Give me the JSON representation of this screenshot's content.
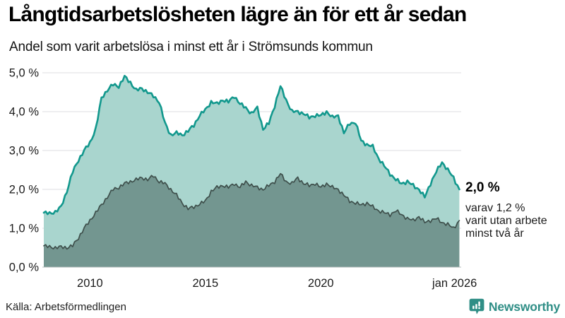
{
  "header": {
    "title": "Långtidsarbetslösheten lägre än för ett år sedan",
    "subtitle": "Andel som varit arbetslösa i minst ett år i Strömsunds kommun"
  },
  "annotation": {
    "value_label": "2,0 %",
    "detail_lines": [
      "varav 1,2 %",
      "varit utan arbete",
      "minst två år"
    ]
  },
  "footer": {
    "source": "Källa: Arbetsförmedlingen",
    "brand": "Newsworthy"
  },
  "colors": {
    "background": "#ffffff",
    "title_text": "#000000",
    "body_text": "#1a1a1a",
    "grid": "#dcdee1",
    "zero_line": "#b6bcbc",
    "series_total_line": "#12988d",
    "series_total_fill": "#a9d5ce",
    "series_two_years_line": "#3e4f4b",
    "series_two_years_fill": "#739690",
    "brand_teal": "#2f8e86"
  },
  "chart_data": {
    "type": "area",
    "title": "Långtidsarbetslösheten lägre än för ett år sedan",
    "subtitle": "Andel som varit arbetslösa i minst ett år i Strömsunds kommun",
    "region": "Strömsunds kommun",
    "unit": "percent",
    "grid": true,
    "legend_position": "end-labels",
    "xlim": [
      2008,
      2026.08
    ],
    "ylim": [
      0,
      5.4
    ],
    "yticks": [
      {
        "value": 0,
        "label": "0,0 %"
      },
      {
        "value": 1,
        "label": "1,0 %"
      },
      {
        "value": 2,
        "label": "2,0 %"
      },
      {
        "value": 3,
        "label": "3,0 %"
      },
      {
        "value": 4,
        "label": "4,0 %"
      },
      {
        "value": 5,
        "label": "5,0 %"
      }
    ],
    "xticks": [
      {
        "year": 2010,
        "label": "2010"
      },
      {
        "year": 2015,
        "label": "2015"
      },
      {
        "year": 2020,
        "label": "2020"
      },
      {
        "year": 2026.04,
        "label": "jan 2026"
      }
    ],
    "x": [
      2008.0,
      2008.25,
      2008.5,
      2008.75,
      2009.0,
      2009.25,
      2009.5,
      2009.75,
      2010.0,
      2010.25,
      2010.5,
      2010.75,
      2011.0,
      2011.25,
      2011.5,
      2011.75,
      2012.0,
      2012.25,
      2012.5,
      2012.75,
      2013.0,
      2013.25,
      2013.5,
      2013.75,
      2014.0,
      2014.25,
      2014.5,
      2014.75,
      2015.0,
      2015.25,
      2015.5,
      2015.75,
      2016.0,
      2016.25,
      2016.5,
      2016.75,
      2017.0,
      2017.25,
      2017.5,
      2017.75,
      2018.0,
      2018.25,
      2018.5,
      2018.75,
      2019.0,
      2019.25,
      2019.5,
      2019.75,
      2020.0,
      2020.25,
      2020.5,
      2020.75,
      2021.0,
      2021.25,
      2021.5,
      2021.75,
      2022.0,
      2022.25,
      2022.5,
      2022.75,
      2023.0,
      2023.25,
      2023.5,
      2023.75,
      2024.0,
      2024.25,
      2024.5,
      2024.75,
      2025.0,
      2025.25,
      2025.5,
      2025.75,
      2026.0
    ],
    "series": [
      {
        "name": "Arbetslösa minst ett år",
        "end_label": "2,0 %",
        "line_color": "#12988d",
        "fill_color": "#a9d5ce",
        "values": [
          1.4,
          1.38,
          1.42,
          1.55,
          1.95,
          2.45,
          2.75,
          3.0,
          3.2,
          3.55,
          4.35,
          4.55,
          4.7,
          4.65,
          4.9,
          4.75,
          4.55,
          4.6,
          4.5,
          4.4,
          4.25,
          3.7,
          3.4,
          3.45,
          3.4,
          3.5,
          3.65,
          3.9,
          4.05,
          4.25,
          4.2,
          4.3,
          4.25,
          4.4,
          4.2,
          4.1,
          3.95,
          4.1,
          3.55,
          3.7,
          4.15,
          4.65,
          4.3,
          4.0,
          4.0,
          3.95,
          3.85,
          3.9,
          3.9,
          4.0,
          3.85,
          3.9,
          3.45,
          3.7,
          3.72,
          3.25,
          3.15,
          3.1,
          2.8,
          2.6,
          2.4,
          2.25,
          2.15,
          2.2,
          2.1,
          2.0,
          1.8,
          2.15,
          2.45,
          2.7,
          2.5,
          2.3,
          2.0
        ]
      },
      {
        "name": "Varit utan arbete minst två år",
        "end_label": "varav 1,2 % varit utan arbete minst två år",
        "line_color": "#3e4f4b",
        "fill_color": "#739690",
        "values": [
          0.55,
          0.52,
          0.5,
          0.52,
          0.5,
          0.55,
          0.75,
          1.0,
          1.2,
          1.4,
          1.6,
          1.8,
          2.0,
          2.05,
          2.15,
          2.2,
          2.25,
          2.3,
          2.25,
          2.35,
          2.2,
          2.15,
          2.0,
          1.85,
          1.65,
          1.5,
          1.55,
          1.62,
          1.7,
          1.95,
          2.05,
          2.1,
          2.05,
          2.15,
          2.05,
          2.2,
          2.1,
          2.05,
          2.0,
          2.1,
          2.2,
          2.4,
          2.2,
          2.15,
          2.3,
          2.15,
          2.1,
          2.15,
          2.05,
          2.15,
          2.05,
          2.0,
          1.85,
          1.7,
          1.65,
          1.6,
          1.65,
          1.55,
          1.45,
          1.4,
          1.35,
          1.45,
          1.35,
          1.25,
          1.2,
          1.3,
          1.15,
          1.2,
          1.25,
          1.15,
          1.1,
          1.0,
          1.2
        ]
      }
    ]
  }
}
